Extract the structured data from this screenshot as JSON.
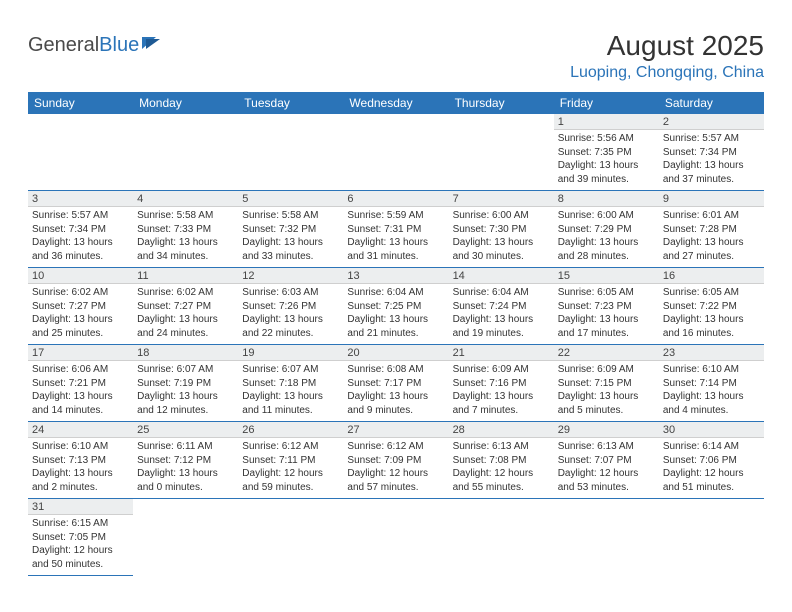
{
  "logo": {
    "textDark": "General",
    "textBlue": "Blue"
  },
  "title": "August 2025",
  "location": "Luoping, Chongqing, China",
  "colors": {
    "headerBg": "#2b74b8",
    "headerText": "#ffffff",
    "dayNumBg": "#eceeef",
    "cellBorder": "#2b74b8",
    "bodyText": "#333333",
    "locationText": "#2b74b8"
  },
  "dayHeaders": [
    "Sunday",
    "Monday",
    "Tuesday",
    "Wednesday",
    "Thursday",
    "Friday",
    "Saturday"
  ],
  "weeks": [
    [
      null,
      null,
      null,
      null,
      null,
      {
        "n": "1",
        "sr": "Sunrise: 5:56 AM",
        "ss": "Sunset: 7:35 PM",
        "dl1": "Daylight: 13 hours",
        "dl2": "and 39 minutes."
      },
      {
        "n": "2",
        "sr": "Sunrise: 5:57 AM",
        "ss": "Sunset: 7:34 PM",
        "dl1": "Daylight: 13 hours",
        "dl2": "and 37 minutes."
      }
    ],
    [
      {
        "n": "3",
        "sr": "Sunrise: 5:57 AM",
        "ss": "Sunset: 7:34 PM",
        "dl1": "Daylight: 13 hours",
        "dl2": "and 36 minutes."
      },
      {
        "n": "4",
        "sr": "Sunrise: 5:58 AM",
        "ss": "Sunset: 7:33 PM",
        "dl1": "Daylight: 13 hours",
        "dl2": "and 34 minutes."
      },
      {
        "n": "5",
        "sr": "Sunrise: 5:58 AM",
        "ss": "Sunset: 7:32 PM",
        "dl1": "Daylight: 13 hours",
        "dl2": "and 33 minutes."
      },
      {
        "n": "6",
        "sr": "Sunrise: 5:59 AM",
        "ss": "Sunset: 7:31 PM",
        "dl1": "Daylight: 13 hours",
        "dl2": "and 31 minutes."
      },
      {
        "n": "7",
        "sr": "Sunrise: 6:00 AM",
        "ss": "Sunset: 7:30 PM",
        "dl1": "Daylight: 13 hours",
        "dl2": "and 30 minutes."
      },
      {
        "n": "8",
        "sr": "Sunrise: 6:00 AM",
        "ss": "Sunset: 7:29 PM",
        "dl1": "Daylight: 13 hours",
        "dl2": "and 28 minutes."
      },
      {
        "n": "9",
        "sr": "Sunrise: 6:01 AM",
        "ss": "Sunset: 7:28 PM",
        "dl1": "Daylight: 13 hours",
        "dl2": "and 27 minutes."
      }
    ],
    [
      {
        "n": "10",
        "sr": "Sunrise: 6:02 AM",
        "ss": "Sunset: 7:27 PM",
        "dl1": "Daylight: 13 hours",
        "dl2": "and 25 minutes."
      },
      {
        "n": "11",
        "sr": "Sunrise: 6:02 AM",
        "ss": "Sunset: 7:27 PM",
        "dl1": "Daylight: 13 hours",
        "dl2": "and 24 minutes."
      },
      {
        "n": "12",
        "sr": "Sunrise: 6:03 AM",
        "ss": "Sunset: 7:26 PM",
        "dl1": "Daylight: 13 hours",
        "dl2": "and 22 minutes."
      },
      {
        "n": "13",
        "sr": "Sunrise: 6:04 AM",
        "ss": "Sunset: 7:25 PM",
        "dl1": "Daylight: 13 hours",
        "dl2": "and 21 minutes."
      },
      {
        "n": "14",
        "sr": "Sunrise: 6:04 AM",
        "ss": "Sunset: 7:24 PM",
        "dl1": "Daylight: 13 hours",
        "dl2": "and 19 minutes."
      },
      {
        "n": "15",
        "sr": "Sunrise: 6:05 AM",
        "ss": "Sunset: 7:23 PM",
        "dl1": "Daylight: 13 hours",
        "dl2": "and 17 minutes."
      },
      {
        "n": "16",
        "sr": "Sunrise: 6:05 AM",
        "ss": "Sunset: 7:22 PM",
        "dl1": "Daylight: 13 hours",
        "dl2": "and 16 minutes."
      }
    ],
    [
      {
        "n": "17",
        "sr": "Sunrise: 6:06 AM",
        "ss": "Sunset: 7:21 PM",
        "dl1": "Daylight: 13 hours",
        "dl2": "and 14 minutes."
      },
      {
        "n": "18",
        "sr": "Sunrise: 6:07 AM",
        "ss": "Sunset: 7:19 PM",
        "dl1": "Daylight: 13 hours",
        "dl2": "and 12 minutes."
      },
      {
        "n": "19",
        "sr": "Sunrise: 6:07 AM",
        "ss": "Sunset: 7:18 PM",
        "dl1": "Daylight: 13 hours",
        "dl2": "and 11 minutes."
      },
      {
        "n": "20",
        "sr": "Sunrise: 6:08 AM",
        "ss": "Sunset: 7:17 PM",
        "dl1": "Daylight: 13 hours",
        "dl2": "and 9 minutes."
      },
      {
        "n": "21",
        "sr": "Sunrise: 6:09 AM",
        "ss": "Sunset: 7:16 PM",
        "dl1": "Daylight: 13 hours",
        "dl2": "and 7 minutes."
      },
      {
        "n": "22",
        "sr": "Sunrise: 6:09 AM",
        "ss": "Sunset: 7:15 PM",
        "dl1": "Daylight: 13 hours",
        "dl2": "and 5 minutes."
      },
      {
        "n": "23",
        "sr": "Sunrise: 6:10 AM",
        "ss": "Sunset: 7:14 PM",
        "dl1": "Daylight: 13 hours",
        "dl2": "and 4 minutes."
      }
    ],
    [
      {
        "n": "24",
        "sr": "Sunrise: 6:10 AM",
        "ss": "Sunset: 7:13 PM",
        "dl1": "Daylight: 13 hours",
        "dl2": "and 2 minutes."
      },
      {
        "n": "25",
        "sr": "Sunrise: 6:11 AM",
        "ss": "Sunset: 7:12 PM",
        "dl1": "Daylight: 13 hours",
        "dl2": "and 0 minutes."
      },
      {
        "n": "26",
        "sr": "Sunrise: 6:12 AM",
        "ss": "Sunset: 7:11 PM",
        "dl1": "Daylight: 12 hours",
        "dl2": "and 59 minutes."
      },
      {
        "n": "27",
        "sr": "Sunrise: 6:12 AM",
        "ss": "Sunset: 7:09 PM",
        "dl1": "Daylight: 12 hours",
        "dl2": "and 57 minutes."
      },
      {
        "n": "28",
        "sr": "Sunrise: 6:13 AM",
        "ss": "Sunset: 7:08 PM",
        "dl1": "Daylight: 12 hours",
        "dl2": "and 55 minutes."
      },
      {
        "n": "29",
        "sr": "Sunrise: 6:13 AM",
        "ss": "Sunset: 7:07 PM",
        "dl1": "Daylight: 12 hours",
        "dl2": "and 53 minutes."
      },
      {
        "n": "30",
        "sr": "Sunrise: 6:14 AM",
        "ss": "Sunset: 7:06 PM",
        "dl1": "Daylight: 12 hours",
        "dl2": "and 51 minutes."
      }
    ],
    [
      {
        "n": "31",
        "sr": "Sunrise: 6:15 AM",
        "ss": "Sunset: 7:05 PM",
        "dl1": "Daylight: 12 hours",
        "dl2": "and 50 minutes."
      },
      null,
      null,
      null,
      null,
      null,
      null
    ]
  ]
}
